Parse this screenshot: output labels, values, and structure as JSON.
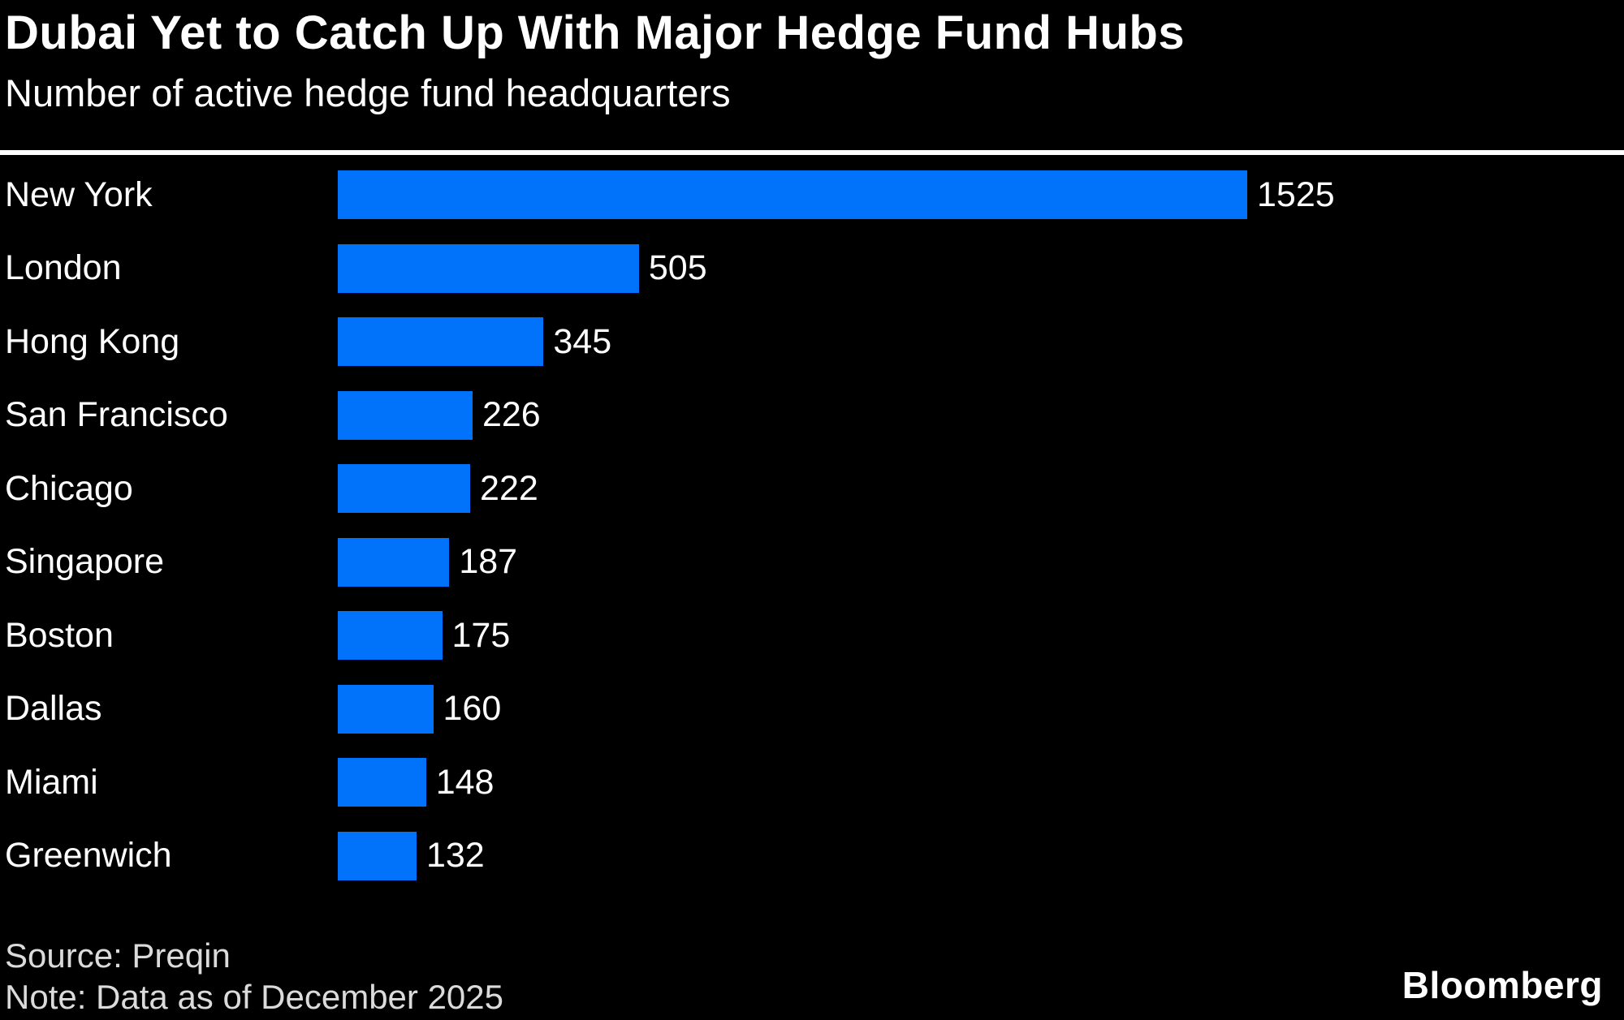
{
  "header": {
    "title": "Dubai Yet to Catch Up With Major Hedge Fund Hubs",
    "subtitle": "Number of active hedge fund headquarters"
  },
  "chart_data": {
    "type": "bar",
    "orientation": "horizontal",
    "title": "Dubai Yet to Catch Up With Major Hedge Fund Hubs",
    "subtitle": "Number of active hedge fund headquarters",
    "categories": [
      "New York",
      "London",
      "Hong Kong",
      "San Francisco",
      "Chicago",
      "Singapore",
      "Boston",
      "Dallas",
      "Miami",
      "Greenwich"
    ],
    "values": [
      1525,
      505,
      345,
      226,
      222,
      187,
      175,
      160,
      148,
      132
    ],
    "xlabel": "",
    "ylabel": "",
    "xlim": [
      0,
      1525
    ],
    "grid": false,
    "legend": false,
    "value_labels": true,
    "bar_color": "#0073FA"
  },
  "footer": {
    "source": "Source: Preqin",
    "note": "Note: Data as of December 2025",
    "brand": "Bloomberg"
  },
  "colors": {
    "background": "#000000",
    "text": "#FFFFFF",
    "bar": "#0073FA",
    "footer_text": "#DBDBDB",
    "divider": "#FFFFFF"
  }
}
